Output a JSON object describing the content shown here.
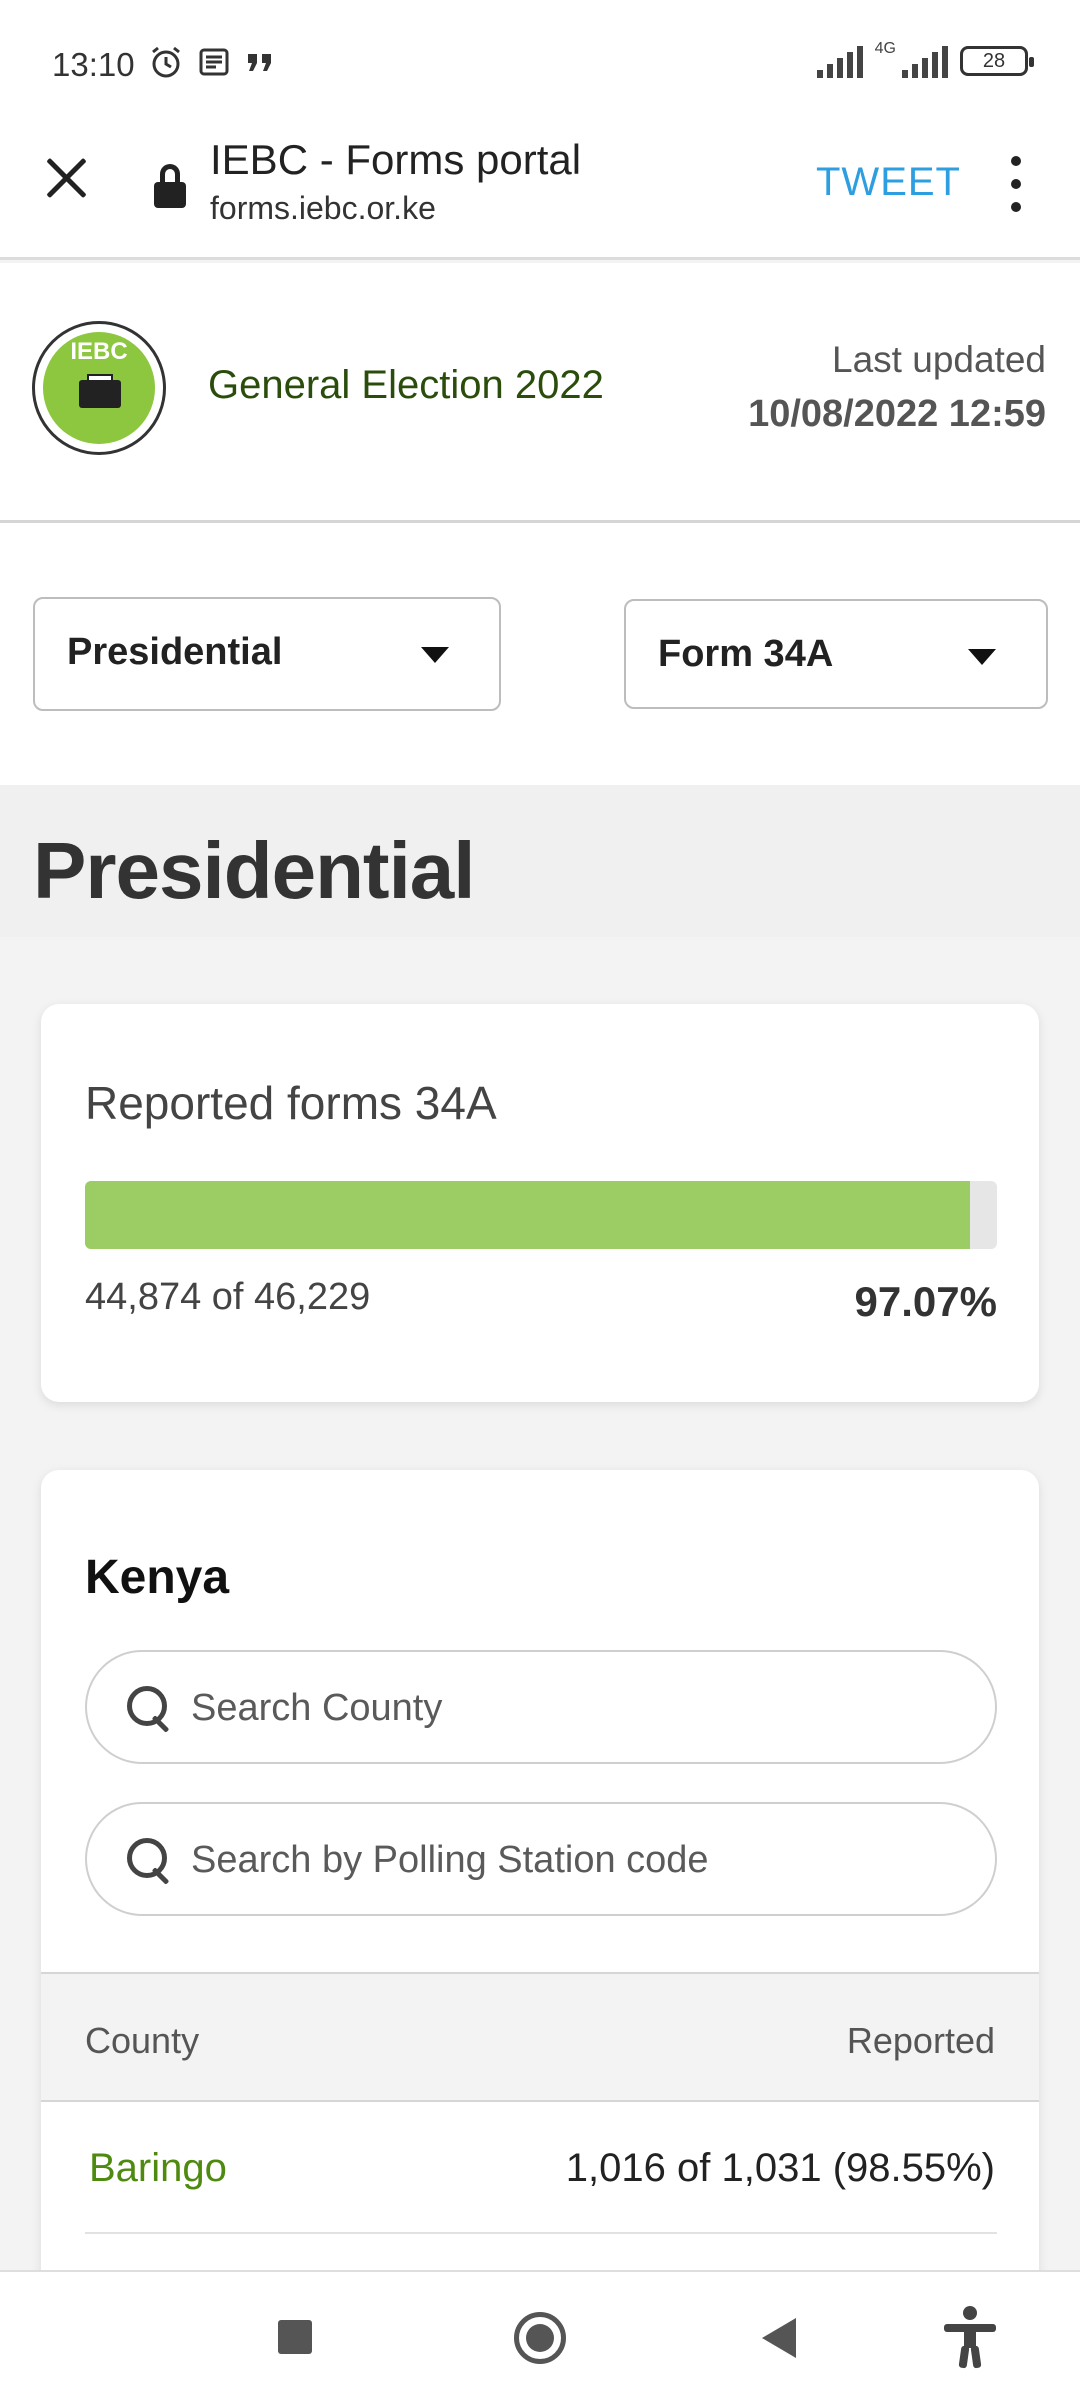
{
  "status_bar": {
    "time": "13:10",
    "network": "4G",
    "battery": "28",
    "left_icons": [
      "alarm-icon",
      "news-icon",
      "quote-icon"
    ]
  },
  "browser": {
    "title": "IEBC - Forms portal",
    "url": "forms.iebc.or.ke",
    "action_label": "TWEET"
  },
  "header": {
    "logo_text": "IEBC",
    "election_title": "General Election 2022",
    "updated_label": "Last updated",
    "updated_value": "10/08/2022 12:59"
  },
  "filters": {
    "election_type": "Presidential",
    "form_type": "Form 34A"
  },
  "section": {
    "title": "Presidential"
  },
  "progress": {
    "title": "Reported forms 34A",
    "count_text": "44,874 of 46,229",
    "percent_text": "97.07%",
    "fraction": 0.9707,
    "fill_color": "#9ccd64"
  },
  "kenya": {
    "title": "Kenya",
    "search_county_placeholder": "Search County",
    "search_station_placeholder": "Search by Polling Station code",
    "columns": {
      "county": "County",
      "reported": "Reported"
    },
    "rows": [
      {
        "county": "Baringo",
        "reported": "1,016 of 1,031 (98.55%)"
      }
    ]
  },
  "colors": {
    "accent_link": "#2d9ee0",
    "county_link": "#4f8a10",
    "brand_green": "#8dc63f"
  }
}
